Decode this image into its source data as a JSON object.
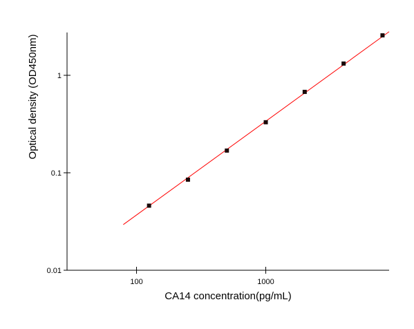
{
  "chart_data": {
    "type": "scatter",
    "x_label": "CA14 concentration(pg/mL)",
    "y_label": "Optical density (OD450nm)",
    "x": [
      125,
      250,
      500,
      1000,
      2000,
      4000,
      8000
    ],
    "values": [
      0.046,
      0.085,
      0.169,
      0.33,
      0.676,
      1.32,
      2.57
    ],
    "color": "#1a0a0a",
    "fit": {
      "x": [
        79,
        9000
      ],
      "values": [
        0.0294,
        2.8
      ],
      "color": "#ff0000"
    },
    "xscale": "log",
    "yscale": "log",
    "xlim": [
      29,
      9000
    ],
    "ylim": [
      0.01,
      2.75
    ],
    "xticks": [
      100,
      1000
    ],
    "yticks": [
      0.01,
      0.1,
      1
    ]
  }
}
